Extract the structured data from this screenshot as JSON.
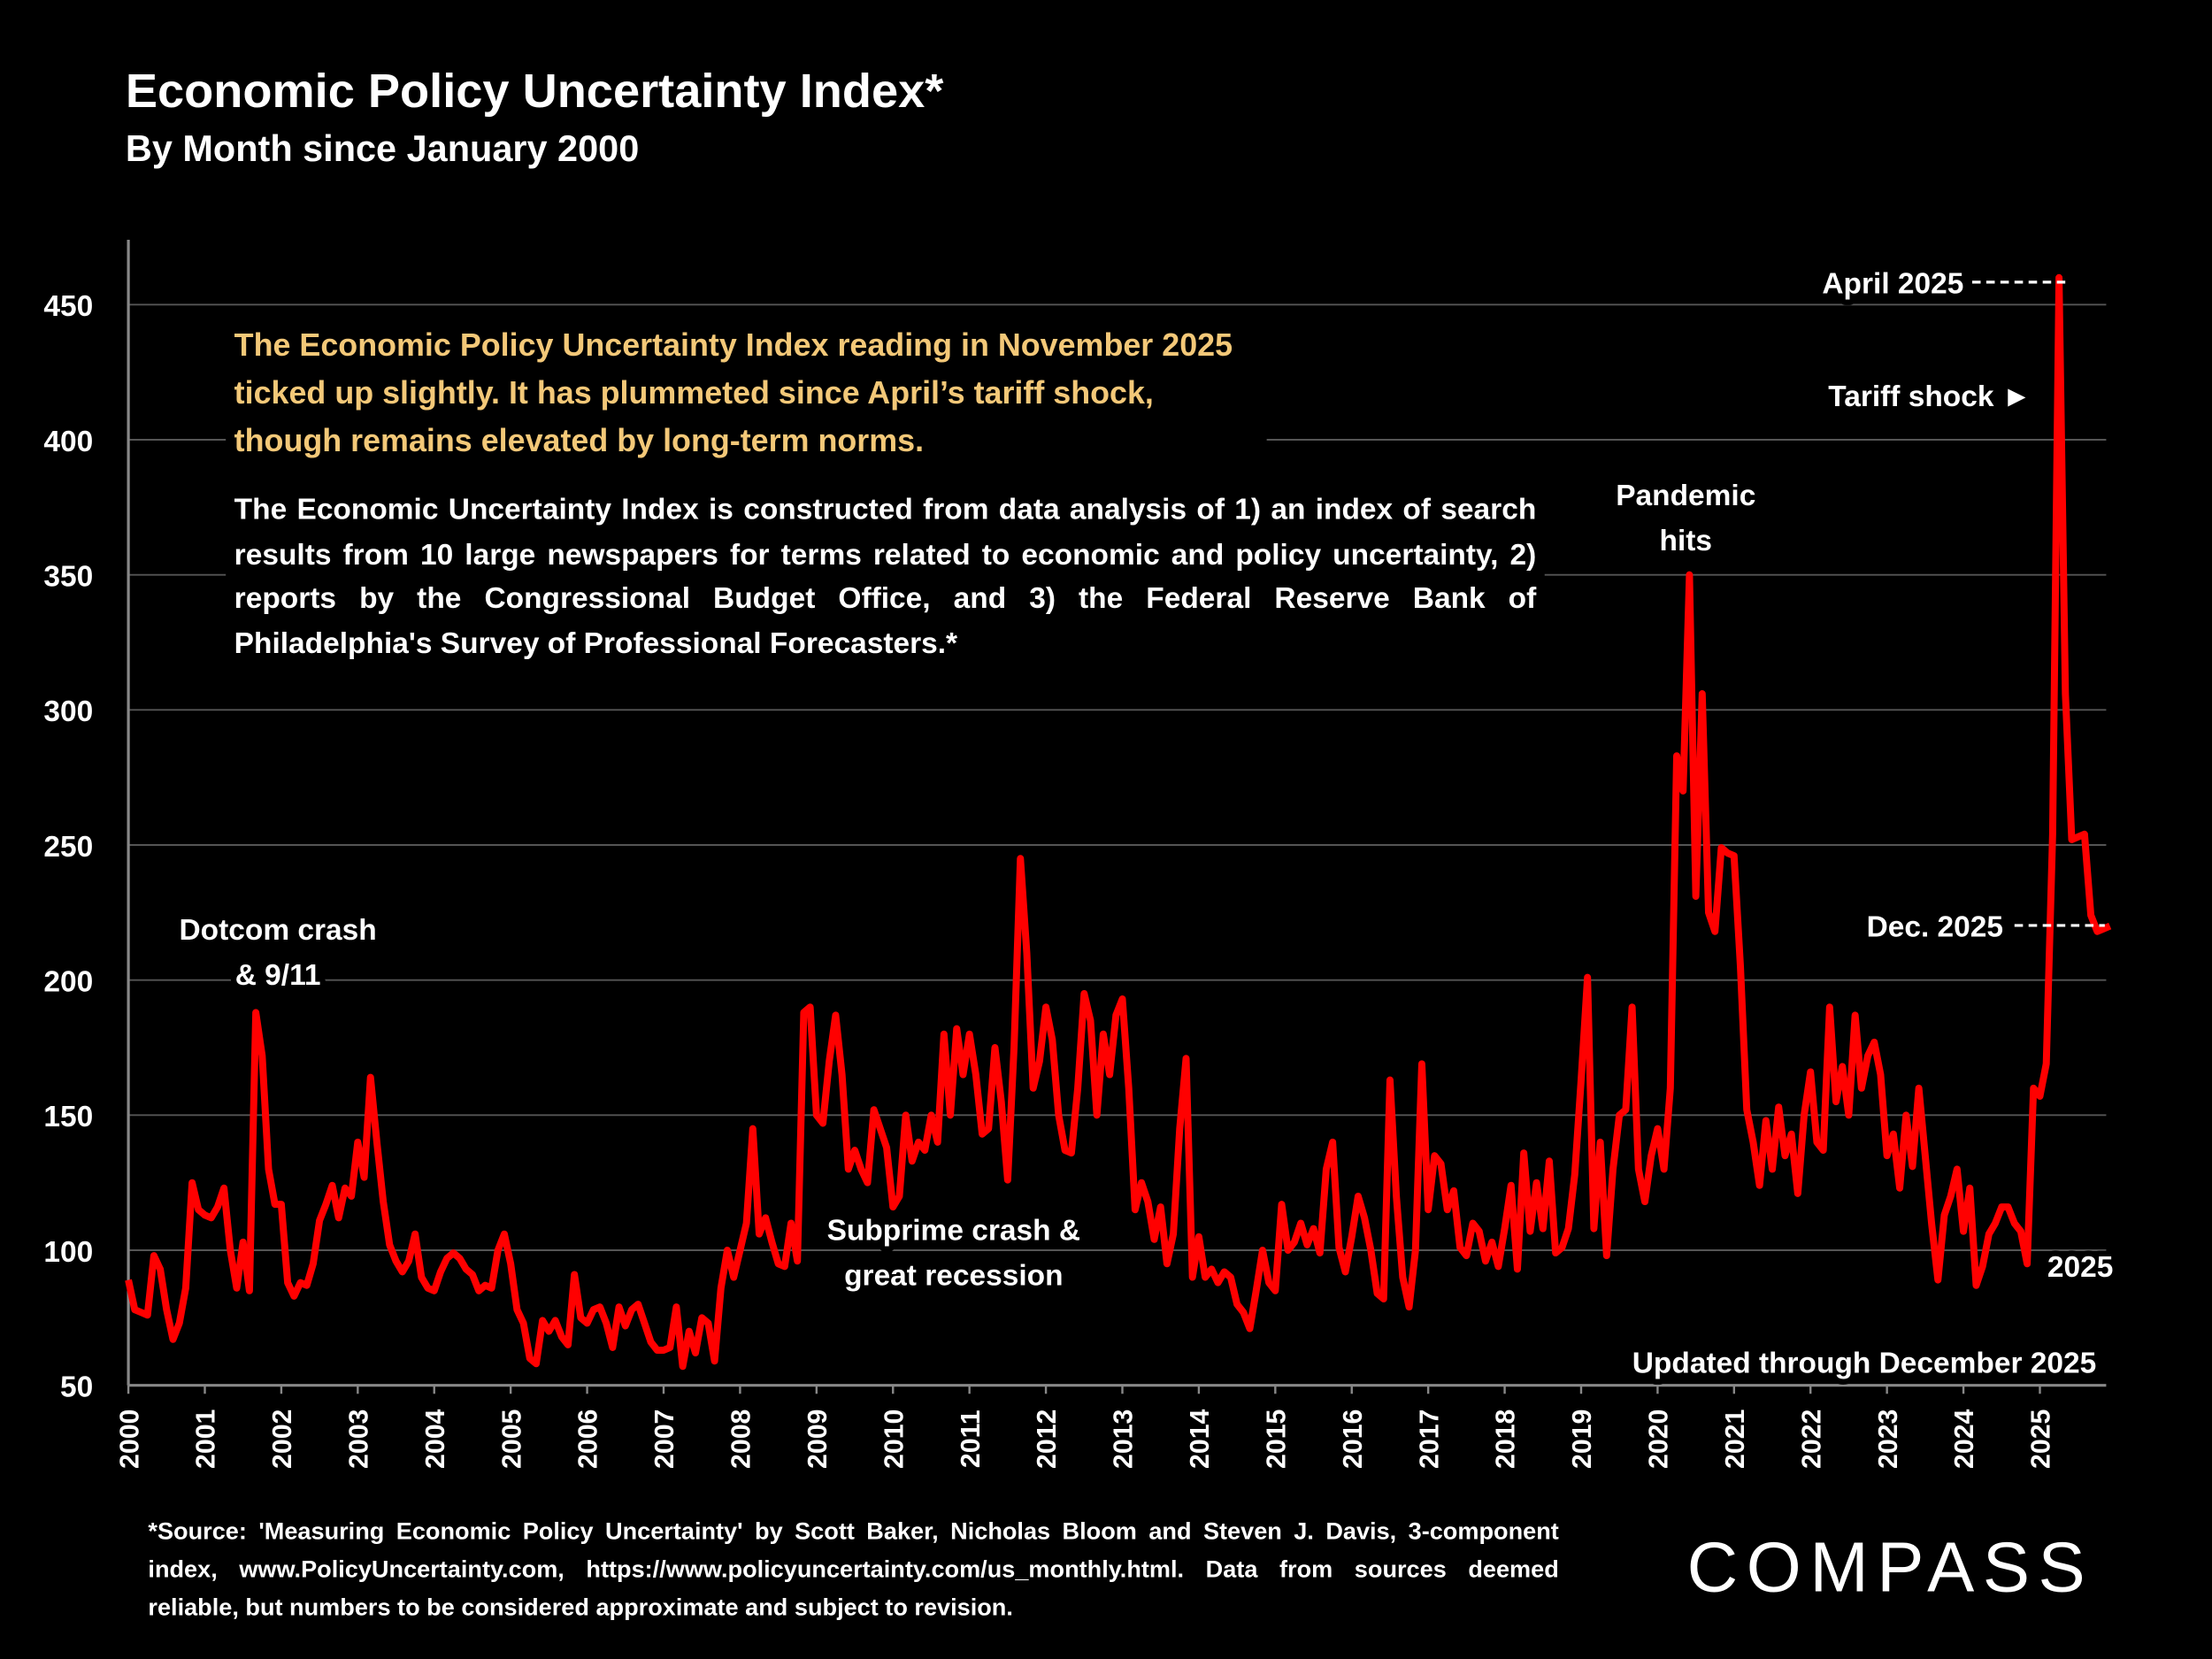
{
  "chart_data": {
    "type": "line",
    "title": "Economic Policy Uncertainty Index*",
    "subtitle": "By Month since January 2000",
    "highlight": "The Economic Policy Uncertainty Index reading in November 2025 ticked up slightly. It has plummeted since April’s tariff shock, though remains elevated by long-term norms.",
    "description": "The Economic Uncertainty Index is constructed from data analysis of 1) an index of search results from 10 large newspapers for terms related to economic and policy uncertainty, 2) reports by the Congressional Budget Office, and 3) the Federal Reserve Bank of Philadelphia's Survey of Professional Forecasters.*",
    "source": "*Source: 'Measuring Economic Policy Uncertainty' by Scott Baker, Nicholas Bloom and Steven J. Davis, 3-component index, www.PolicyUncertainty.com, https://www.policyuncertainty.com/us_monthly.html. Data from sources deemed reliable, but numbers to be considered approximate and subject to revision.",
    "logo": "COMPASS",
    "annotations": [
      {
        "lines": [
          "Dotcom crash",
          "& 9/11"
        ]
      },
      {
        "lines": [
          "Subprime crash &",
          "great recession"
        ]
      },
      {
        "lines": [
          "Pandemic",
          "hits"
        ]
      },
      {
        "lines": [
          "April 2025"
        ]
      },
      {
        "lines": [
          "Tariff shock ►"
        ]
      },
      {
        "lines": [
          "Dec. 2025"
        ]
      },
      {
        "lines": [
          "2025"
        ]
      },
      {
        "lines": [
          "Updated through December 2025"
        ]
      }
    ],
    "color": "#ff0000",
    "grid": true,
    "ylim": [
      50,
      474
    ],
    "yticks": [
      50,
      100,
      150,
      200,
      250,
      300,
      350,
      400,
      450
    ],
    "categories": [
      "2000",
      null,
      null,
      null,
      null,
      null,
      null,
      null,
      null,
      null,
      null,
      null,
      "2001",
      null,
      null,
      null,
      null,
      null,
      null,
      null,
      null,
      null,
      null,
      null,
      "2002",
      null,
      null,
      null,
      null,
      null,
      null,
      null,
      null,
      null,
      null,
      null,
      "2003",
      null,
      null,
      null,
      null,
      null,
      null,
      null,
      null,
      null,
      null,
      null,
      "2004",
      null,
      null,
      null,
      null,
      null,
      null,
      null,
      null,
      null,
      null,
      null,
      "2005",
      null,
      null,
      null,
      null,
      null,
      null,
      null,
      null,
      null,
      null,
      null,
      "2006",
      null,
      null,
      null,
      null,
      null,
      null,
      null,
      null,
      null,
      null,
      null,
      "2007",
      null,
      null,
      null,
      null,
      null,
      null,
      null,
      null,
      null,
      null,
      null,
      "2008",
      null,
      null,
      null,
      null,
      null,
      null,
      null,
      null,
      null,
      null,
      null,
      "2009",
      null,
      null,
      null,
      null,
      null,
      null,
      null,
      null,
      null,
      null,
      null,
      "2010",
      null,
      null,
      null,
      null,
      null,
      null,
      null,
      null,
      null,
      null,
      null,
      "2011",
      null,
      null,
      null,
      null,
      null,
      null,
      null,
      null,
      null,
      null,
      null,
      "2012",
      null,
      null,
      null,
      null,
      null,
      null,
      null,
      null,
      null,
      null,
      null,
      "2013",
      null,
      null,
      null,
      null,
      null,
      null,
      null,
      null,
      null,
      null,
      null,
      "2014",
      null,
      null,
      null,
      null,
      null,
      null,
      null,
      null,
      null,
      null,
      null,
      "2015",
      null,
      null,
      null,
      null,
      null,
      null,
      null,
      null,
      null,
      null,
      null,
      "2016",
      null,
      null,
      null,
      null,
      null,
      null,
      null,
      null,
      null,
      null,
      null,
      "2017",
      null,
      null,
      null,
      null,
      null,
      null,
      null,
      null,
      null,
      null,
      null,
      "2018",
      null,
      null,
      null,
      null,
      null,
      null,
      null,
      null,
      null,
      null,
      null,
      "2019",
      null,
      null,
      null,
      null,
      null,
      null,
      null,
      null,
      null,
      null,
      null,
      "2020",
      null,
      null,
      null,
      null,
      null,
      null,
      null,
      null,
      null,
      null,
      null,
      "2021",
      null,
      null,
      null,
      null,
      null,
      null,
      null,
      null,
      null,
      null,
      null,
      "2022",
      null,
      null,
      null,
      null,
      null,
      null,
      null,
      null,
      null,
      null,
      null,
      "2023",
      null,
      null,
      null,
      null,
      null,
      null,
      null,
      null,
      null,
      null,
      null,
      "2024",
      null,
      null,
      null,
      null,
      null,
      null,
      null,
      null,
      null,
      null,
      null,
      "2025",
      null,
      null,
      null,
      null,
      null,
      null,
      null,
      null,
      null,
      null,
      null
    ],
    "values": [
      89,
      78,
      77,
      76,
      98,
      93,
      78,
      67,
      73,
      86,
      125,
      115,
      113,
      112,
      116,
      123,
      100,
      86,
      103,
      85,
      188,
      172,
      130,
      117,
      117,
      88,
      83,
      88,
      87,
      95,
      111,
      117,
      124,
      112,
      123,
      120,
      140,
      127,
      164,
      140,
      118,
      102,
      96,
      92,
      96,
      106,
      90,
      86,
      85,
      92,
      97,
      99,
      97,
      93,
      91,
      85,
      87,
      86,
      100,
      106,
      95,
      78,
      73,
      60,
      58,
      74,
      70,
      74,
      68,
      65,
      91,
      75,
      73,
      78,
      79,
      73,
      64,
      79,
      72,
      78,
      80,
      73,
      66,
      63,
      63,
      64,
      79,
      57,
      70,
      62,
      75,
      73,
      59,
      86,
      100,
      90,
      100,
      110,
      145,
      106,
      112,
      103,
      95,
      94,
      110,
      96,
      188,
      190,
      150,
      147,
      170,
      187,
      165,
      130,
      137,
      130,
      125,
      152,
      145,
      138,
      116,
      120,
      150,
      133,
      140,
      137,
      150,
      140,
      180,
      150,
      182,
      165,
      180,
      165,
      143,
      145,
      175,
      155,
      126,
      175,
      245,
      210,
      160,
      170,
      190,
      178,
      150,
      137,
      136,
      160,
      195,
      185,
      150,
      180,
      165,
      187,
      193,
      160,
      115,
      125,
      118,
      104,
      116,
      95,
      106,
      145,
      171,
      90,
      105,
      90,
      93,
      88,
      92,
      90,
      80,
      77,
      71,
      85,
      100,
      88,
      85,
      117,
      100,
      103,
      110,
      102,
      108,
      99,
      130,
      140,
      101,
      92,
      105,
      120,
      112,
      100,
      84,
      82,
      163,
      120,
      90,
      79,
      100,
      169,
      115,
      135,
      132,
      115,
      122,
      101,
      98,
      110,
      107,
      96,
      103,
      94,
      108,
      124,
      93,
      136,
      107,
      125,
      108,
      133,
      99,
      101,
      108,
      128,
      163,
      201,
      108,
      140,
      98,
      130,
      150,
      152,
      190,
      130,
      118,
      135,
      145,
      130,
      160,
      283,
      270,
      350,
      231,
      306,
      225,
      218,
      249,
      247,
      246,
      205,
      152,
      140,
      124,
      148,
      130,
      153,
      135,
      143,
      121,
      150,
      166,
      140,
      137,
      190,
      155,
      168,
      150,
      187,
      160,
      172,
      177,
      165,
      135,
      143,
      123,
      150,
      131,
      160,
      135,
      110,
      89,
      113,
      120,
      130,
      107,
      123,
      87,
      94,
      106,
      110,
      116,
      116,
      110,
      107,
      95,
      160,
      157,
      169,
      254,
      460,
      306,
      252,
      253,
      254,
      224,
      218,
      219,
      220
    ]
  }
}
